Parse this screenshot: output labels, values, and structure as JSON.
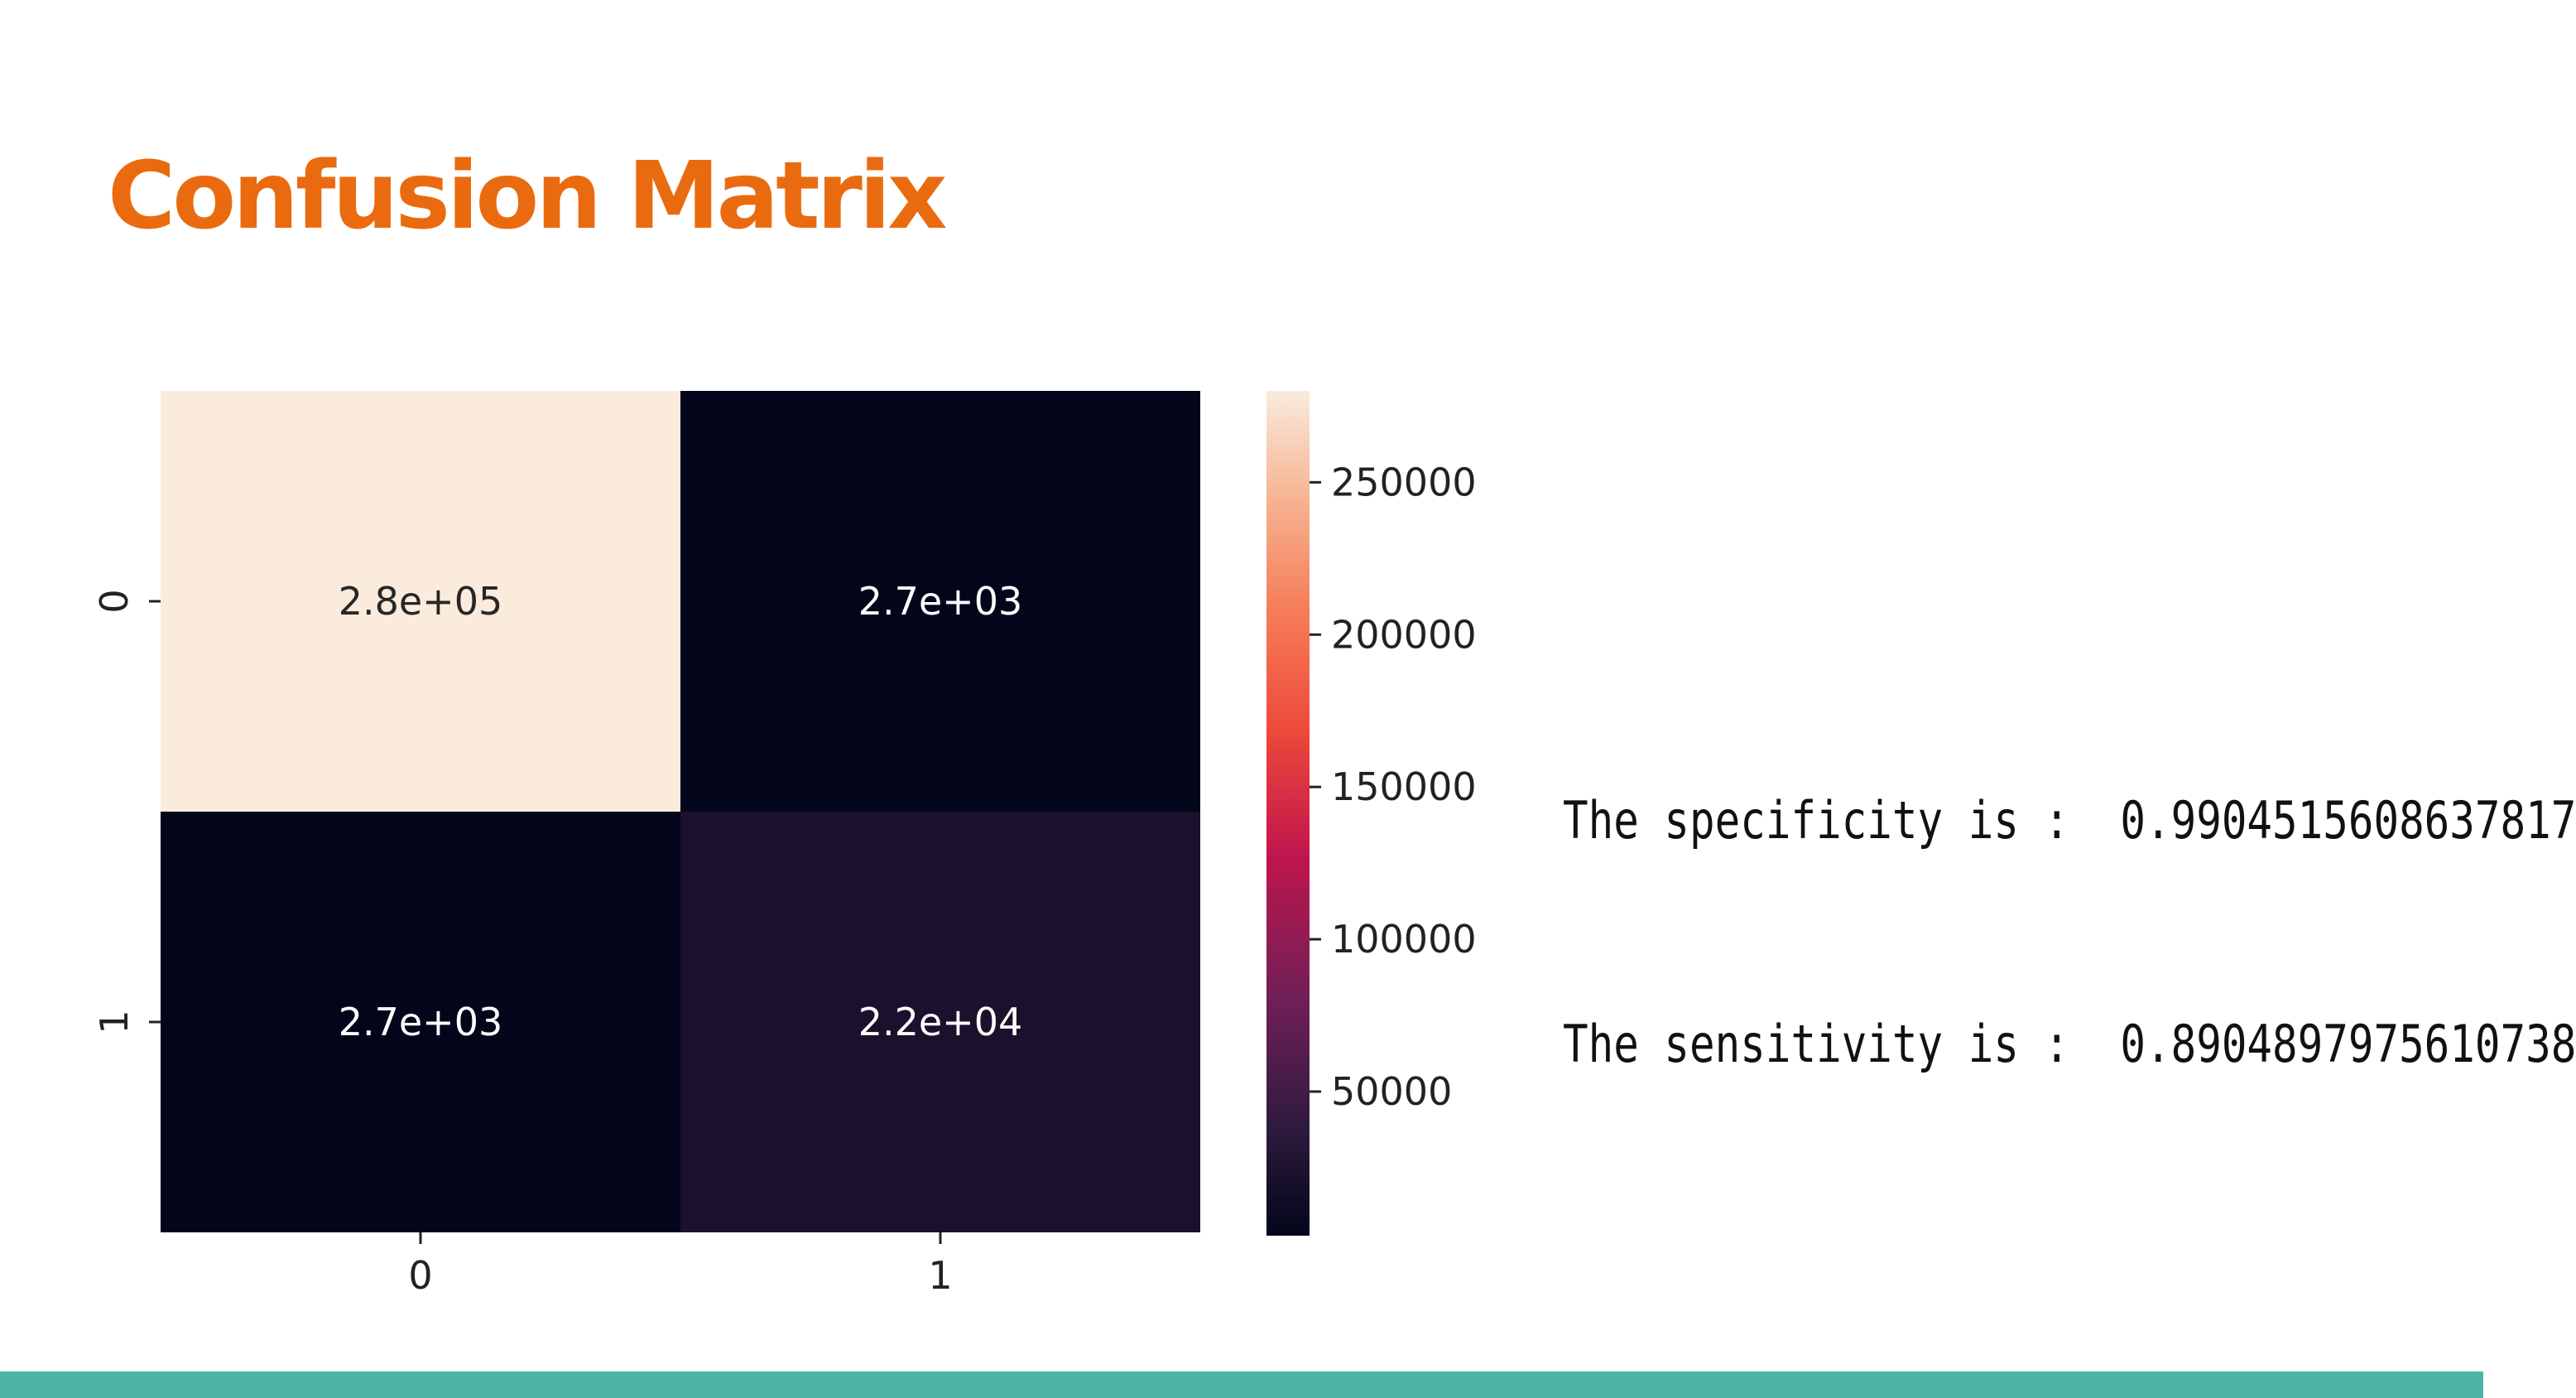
{
  "slide": {
    "title": "Confusion Matrix",
    "title_color": "#ea6b0f",
    "footer_color": "#4cb5a7"
  },
  "stats": {
    "specificity_line": "The specificity is :  0.9904515608637817",
    "sensitivity_line": "The sensitivity is :  0.8904897975610738"
  },
  "chart_data": {
    "type": "heatmap",
    "title": "",
    "xlabel": "",
    "ylabel": "",
    "x_categories": [
      "0",
      "1"
    ],
    "y_categories": [
      "0",
      "1"
    ],
    "values": [
      [
        280000,
        2700
      ],
      [
        2700,
        22000
      ]
    ],
    "annotations": [
      [
        "2.8e+05",
        "2.7e+03"
      ],
      [
        "2.7e+03",
        "2.2e+04"
      ]
    ],
    "colormap": "rocket",
    "colorbar": {
      "min": 2700,
      "max": 280000,
      "ticks": [
        50000,
        100000,
        150000,
        200000,
        250000
      ],
      "tick_labels": [
        "50000",
        "100000",
        "150000",
        "200000",
        "250000"
      ]
    }
  }
}
